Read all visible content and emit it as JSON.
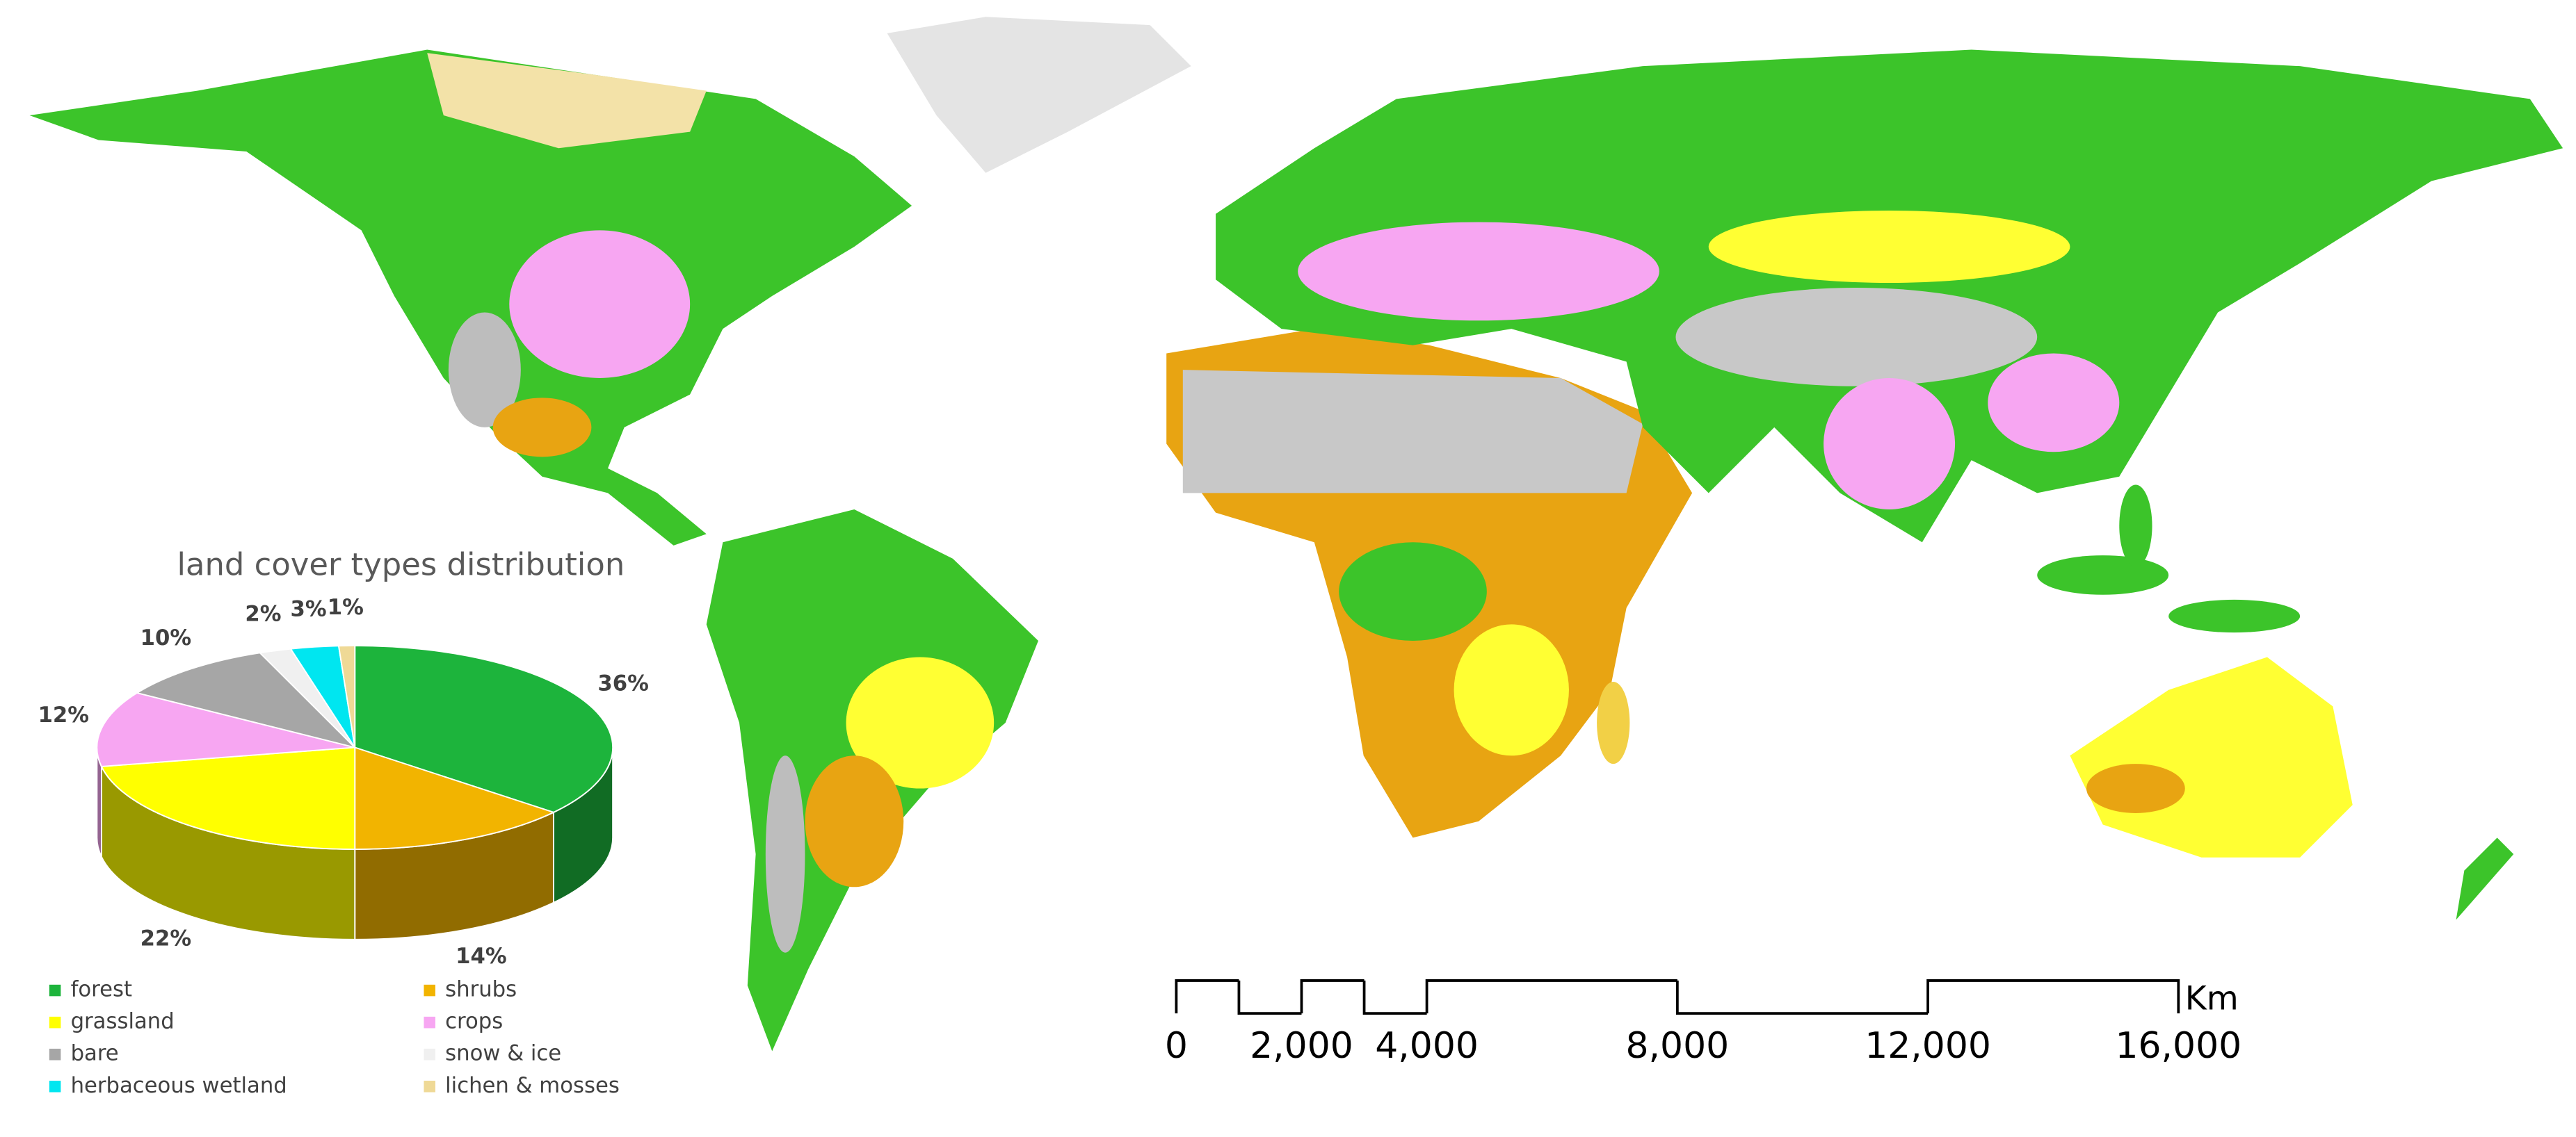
{
  "chart_data": {
    "type": "pie",
    "title": "land cover types distribution",
    "categories": [
      "forest",
      "shrubs",
      "grassland",
      "crops",
      "bare",
      "snow & ice",
      "herbaceous wetland",
      "lichen & mosses"
    ],
    "values": [
      36,
      14,
      22,
      12,
      10,
      2,
      3,
      1
    ],
    "value_labels": [
      "36%",
      "14%",
      "22%",
      "12%",
      "10%",
      "2%",
      "3%",
      "1%"
    ],
    "colors": [
      "#1db43c",
      "#f2b400",
      "#ffff00",
      "#f7a6f2",
      "#a6a6a6",
      "#f0f0f0",
      "#00e6f0",
      "#efd996"
    ]
  },
  "scale_bar": {
    "unit": "Km",
    "ticks": [
      0,
      {
        "value": 2000,
        "label": "2,000"
      },
      {
        "value": 4000,
        "label": "4,000"
      },
      {
        "value": 8000,
        "label": "8,000"
      },
      {
        "value": 12000,
        "label": "12,000"
      },
      {
        "value": 16000,
        "label": "16,000"
      }
    ],
    "divisions": [
      0,
      1000,
      2000,
      3000,
      4000,
      8000,
      12000,
      16000
    ]
  }
}
